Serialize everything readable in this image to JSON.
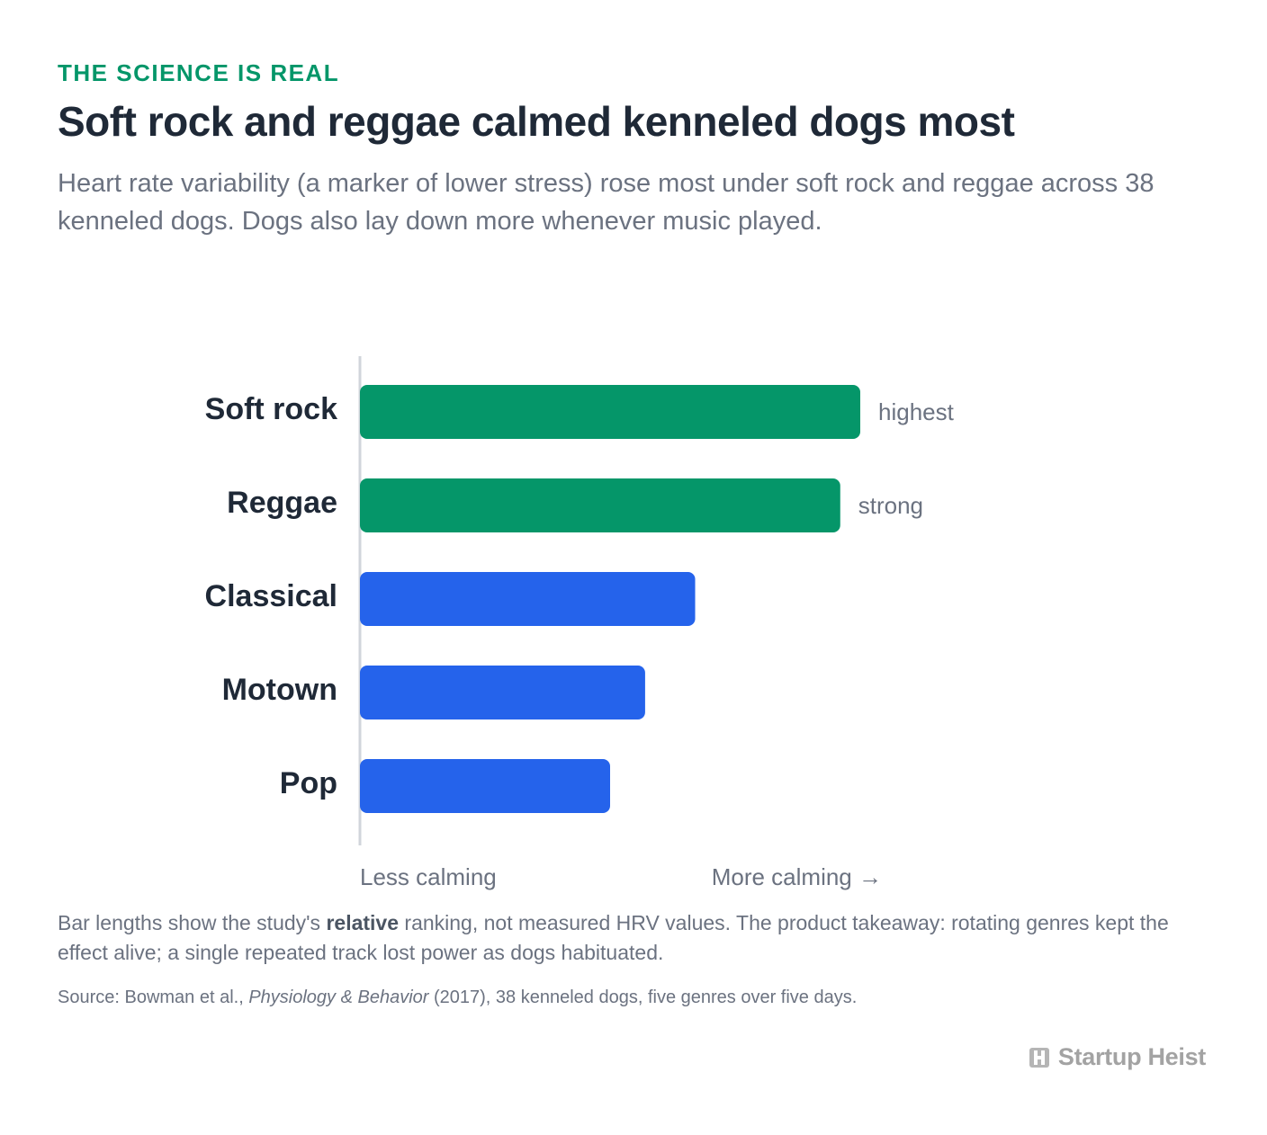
{
  "header": {
    "eyebrow": "THE SCIENCE IS REAL",
    "title": "Soft rock and reggae calmed kenneled dogs most",
    "subtitle": "Heart rate variability (a marker of lower stress) rose most under soft rock and reggae across 38 kenneled dogs. Dogs also lay down more whenever music played."
  },
  "chart_data": {
    "type": "bar",
    "orientation": "horizontal",
    "categories": [
      "Soft rock",
      "Reggae",
      "Classical",
      "Motown",
      "Pop"
    ],
    "values": [
      100,
      96,
      67,
      57,
      50
    ],
    "value_labels": [
      "highest",
      "strong",
      "",
      "",
      ""
    ],
    "bar_colors": [
      "#059669",
      "#059669",
      "#2563eb",
      "#2563eb",
      "#2563eb"
    ],
    "xlabel_left": "Less calming",
    "xlabel_right": "More calming →",
    "xlim": [
      0,
      100
    ],
    "grid": false,
    "legend": "none"
  },
  "footer": {
    "note_before": "Bar lengths show the study's ",
    "note_bold": "relative",
    "note_after": " ranking, not measured HRV values. The product takeaway: rotating genres kept the effect alive; a single repeated track lost power as dogs habituated.",
    "source_before": "Source: Bowman et al., ",
    "source_journal": "Physiology & Behavior",
    "source_after": " (2017), 38 kenneled dogs, five genres over five days.",
    "brand": "Startup Heist"
  },
  "colors": {
    "accent_green": "#059669",
    "accent_blue": "#2563eb",
    "axis": "#d1d5db",
    "title": "#1f2937",
    "muted": "#6b7280"
  }
}
